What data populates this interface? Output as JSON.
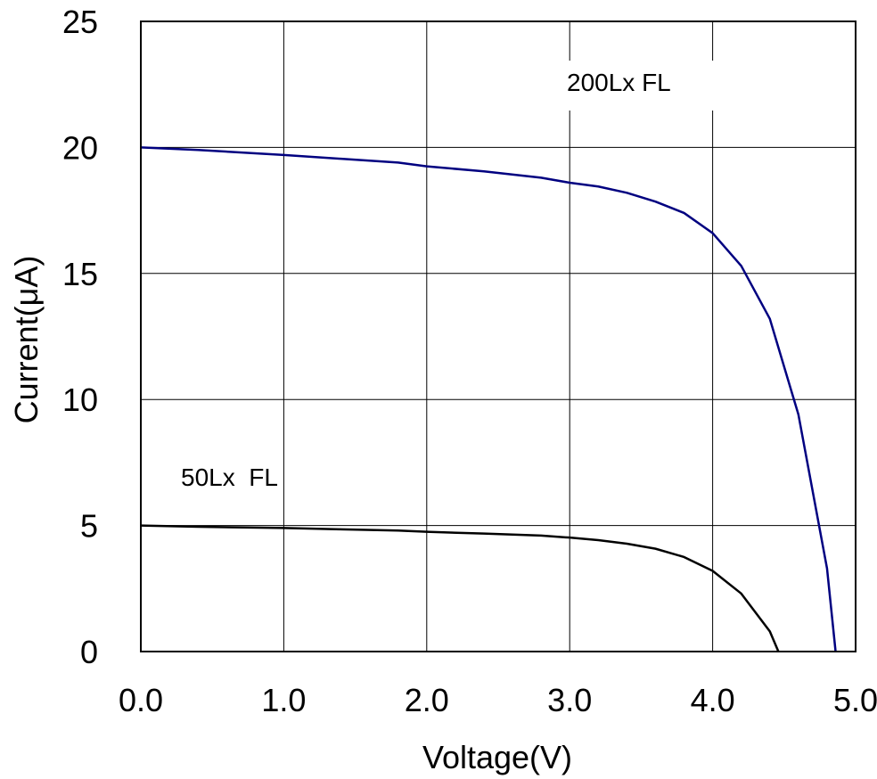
{
  "chart_data": {
    "type": "line",
    "title": "",
    "xlabel": "Voltage(V)",
    "ylabel": "Current(μA)",
    "xlim": [
      0,
      5
    ],
    "ylim": [
      0,
      25
    ],
    "x_ticks": [
      "0.0",
      "1.0",
      "2.0",
      "3.0",
      "4.0",
      "5.0"
    ],
    "y_ticks": [
      "0",
      "5",
      "10",
      "15",
      "20",
      "25"
    ],
    "grid": true,
    "annotations": [
      "200Lx FL",
      "50Lx  FL"
    ],
    "series": [
      {
        "color": "#000080",
        "x": [
          0.0,
          0.4,
          1.0,
          1.4,
          1.8,
          2.0,
          2.4,
          2.8,
          3.0,
          3.2,
          3.4,
          3.6,
          3.8,
          4.0,
          4.2,
          4.4,
          4.6,
          4.8,
          4.86
        ],
        "y": [
          20.0,
          19.9,
          19.7,
          19.55,
          19.4,
          19.25,
          19.05,
          18.8,
          18.6,
          18.45,
          18.2,
          17.85,
          17.4,
          16.6,
          15.3,
          13.2,
          9.4,
          3.3,
          0.0
        ]
      },
      {
        "color": "#000000",
        "x": [
          0.0,
          0.4,
          1.0,
          1.4,
          1.8,
          2.0,
          2.4,
          2.8,
          3.0,
          3.2,
          3.4,
          3.6,
          3.8,
          4.0,
          4.2,
          4.4,
          4.46
        ],
        "y": [
          5.0,
          4.95,
          4.9,
          4.85,
          4.8,
          4.75,
          4.68,
          4.6,
          4.52,
          4.42,
          4.28,
          4.08,
          3.75,
          3.2,
          2.3,
          0.8,
          0.0
        ]
      }
    ]
  }
}
